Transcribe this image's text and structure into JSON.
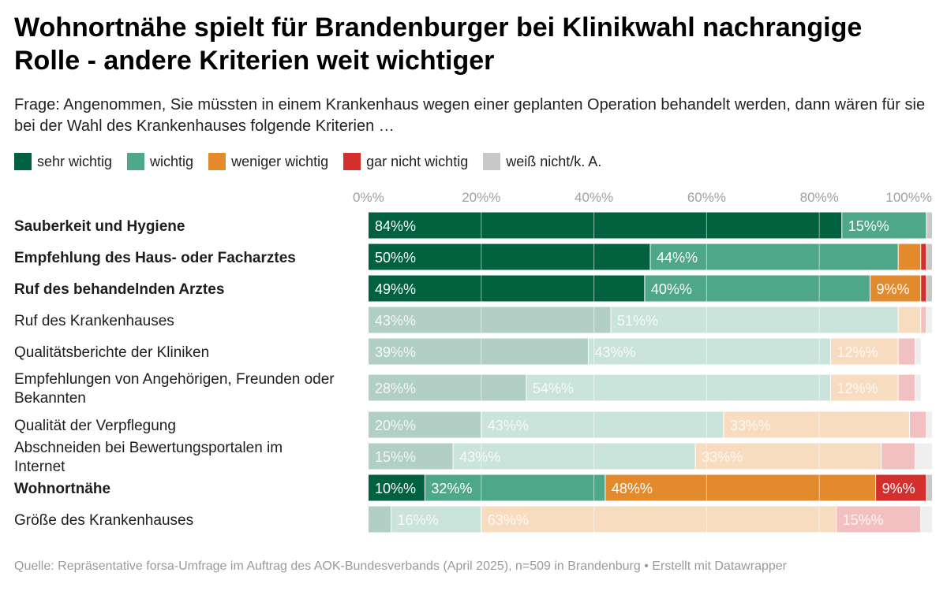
{
  "title": "Wohnortnähe spielt für Brandenburger bei Klinikwahl nachrangige Rolle - andere Kriterien weit wichtiger",
  "subtitle": "Frage: Angenommen, Sie müssten in einem Krankenhaus wegen einer geplanten Operation behandelt werden, dann wären für sie bei der Wahl des Krankenhauses folgende Kriterien …",
  "legend": [
    {
      "label": "sehr wichtig",
      "color": "#00613f"
    },
    {
      "label": "wichtig",
      "color": "#4fa78a"
    },
    {
      "label": "weniger wichtig",
      "color": "#e38b2c"
    },
    {
      "label": "gar nicht wichtig",
      "color": "#d32f2f"
    },
    {
      "label": "weiß nicht/k. A.",
      "color": "#c8c8c8"
    }
  ],
  "source": "Quelle: Repräsentative forsa-Umfrage im Auftrag des AOK-Bundesverbands (April 2025), n=509 in Brandenburg • Erstellt mit Datawrapper",
  "chart_data": {
    "type": "bar",
    "orientation": "horizontal",
    "stacked": true,
    "xlim": [
      0,
      100
    ],
    "tick_labels": [
      "0%%",
      "20%%",
      "40%%",
      "60%%",
      "80%%",
      "100%%"
    ],
    "tick_values": [
      0,
      20,
      40,
      60,
      80,
      100
    ],
    "series_names": [
      "sehr wichtig",
      "wichtig",
      "weniger wichtig",
      "gar nicht wichtig",
      "weiß nicht/k. A."
    ],
    "colors": [
      "#00613f",
      "#4fa78a",
      "#e38b2c",
      "#d32f2f",
      "#c8c8c8"
    ],
    "rows": [
      {
        "label": "Sauberkeit und Hygiene",
        "highlight": true,
        "values": [
          84,
          15,
          0,
          0,
          1
        ],
        "labels": [
          "84%%",
          "15%%",
          "",
          "",
          ""
        ]
      },
      {
        "label": "Empfehlung des Haus- oder Facharztes",
        "highlight": true,
        "values": [
          50,
          44,
          4,
          1,
          1
        ],
        "labels": [
          "50%%",
          "44%%",
          "",
          "",
          ""
        ]
      },
      {
        "label": "Ruf des behandelnden Arztes",
        "highlight": true,
        "values": [
          49,
          40,
          9,
          1,
          1
        ],
        "labels": [
          "49%%",
          "40%%",
          "9%%",
          "",
          ""
        ]
      },
      {
        "label": "Ruf des Krankenhauses",
        "highlight": false,
        "values": [
          43,
          51,
          4,
          1,
          1
        ],
        "labels": [
          "43%%",
          "51%%",
          "",
          "",
          ""
        ]
      },
      {
        "label": "Qualitätsberichte der Kliniken",
        "highlight": false,
        "values": [
          39,
          43,
          12,
          3,
          1
        ],
        "labels": [
          "39%%",
          "43%%",
          "12%%",
          "",
          ""
        ]
      },
      {
        "label": "Empfehlungen von Angehörigen, Freunden oder Bekannten",
        "highlight": false,
        "values": [
          28,
          54,
          12,
          3,
          1
        ],
        "labels": [
          "28%%",
          "54%%",
          "12%%",
          "",
          ""
        ]
      },
      {
        "label": "Qualität der Verpflegung",
        "highlight": false,
        "values": [
          20,
          43,
          33,
          3,
          1
        ],
        "labels": [
          "20%%",
          "43%%",
          "33%%",
          "",
          ""
        ]
      },
      {
        "label": "Abschneiden bei Bewertungsportalen im Internet",
        "highlight": false,
        "values": [
          15,
          43,
          33,
          6,
          3
        ],
        "labels": [
          "15%%",
          "43%%",
          "33%%",
          "",
          ""
        ]
      },
      {
        "label": "Wohnortnähe",
        "highlight": true,
        "values": [
          10,
          32,
          48,
          9,
          1
        ],
        "labels": [
          "10%%",
          "32%%",
          "48%%",
          "9%%",
          ""
        ]
      },
      {
        "label": "Größe des Krankenhauses",
        "highlight": false,
        "values": [
          4,
          16,
          63,
          15,
          2
        ],
        "labels": [
          "",
          "16%%",
          "63%%",
          "15%%",
          ""
        ]
      }
    ]
  }
}
